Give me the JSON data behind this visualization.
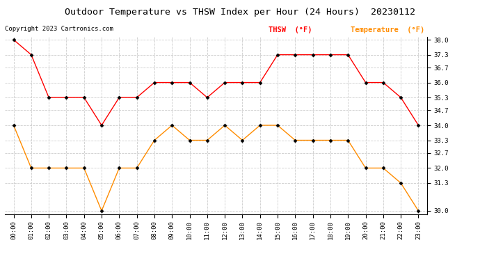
{
  "title": "Outdoor Temperature vs THSW Index per Hour (24 Hours)  20230112",
  "copyright": "Copyright 2023 Cartronics.com",
  "legend_thsw": "THSW  (°F)",
  "legend_temp": "Temperature  (°F)",
  "hours": [
    "00:00",
    "01:00",
    "02:00",
    "03:00",
    "04:00",
    "05:00",
    "06:00",
    "07:00",
    "08:00",
    "09:00",
    "10:00",
    "11:00",
    "12:00",
    "13:00",
    "14:00",
    "15:00",
    "16:00",
    "17:00",
    "18:00",
    "19:00",
    "20:00",
    "21:00",
    "22:00",
    "23:00"
  ],
  "thsw": [
    38.0,
    37.3,
    35.3,
    35.3,
    35.3,
    34.0,
    35.3,
    35.3,
    36.0,
    36.0,
    36.0,
    35.3,
    36.0,
    36.0,
    36.0,
    37.3,
    37.3,
    37.3,
    37.3,
    37.3,
    36.0,
    36.0,
    35.3,
    34.0
  ],
  "temp": [
    34.0,
    32.0,
    32.0,
    32.0,
    32.0,
    30.0,
    32.0,
    32.0,
    33.3,
    34.0,
    33.3,
    33.3,
    34.0,
    33.3,
    34.0,
    34.0,
    33.3,
    33.3,
    33.3,
    33.3,
    32.0,
    32.0,
    31.3,
    30.0
  ],
  "thsw_color": "#ff0000",
  "temp_color": "#ff8c00",
  "ylim_min": 30.0,
  "ylim_max": 38.0,
  "yticks": [
    30.0,
    31.3,
    32.0,
    32.7,
    33.3,
    34.0,
    34.7,
    35.3,
    36.0,
    36.7,
    37.3,
    38.0
  ],
  "bg_color": "#ffffff",
  "grid_color": "#cccccc",
  "title_fontsize": 9.5,
  "legend_fontsize": 7.5,
  "tick_fontsize": 6.5,
  "copyright_fontsize": 6.5
}
